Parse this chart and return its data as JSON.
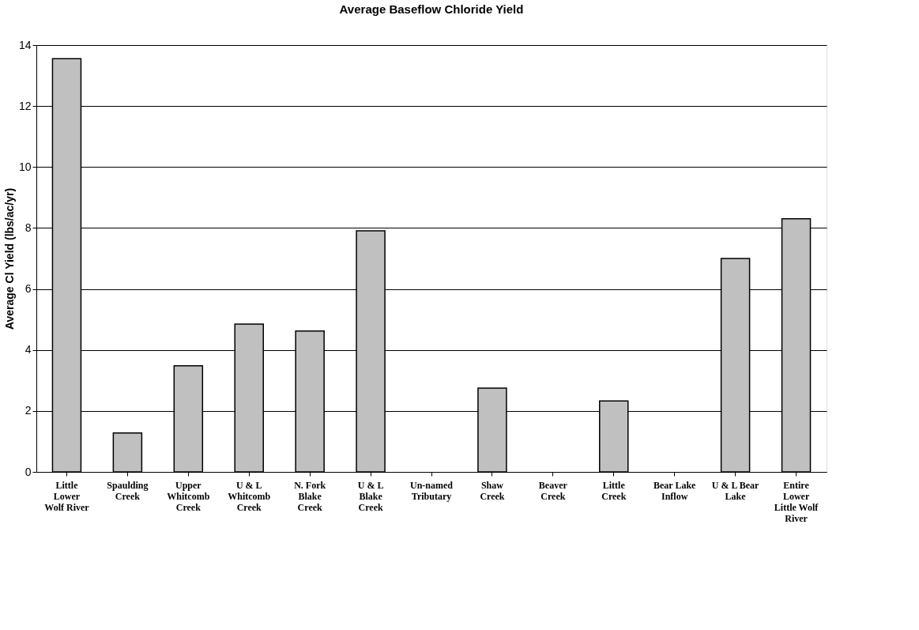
{
  "chart_data": {
    "type": "bar",
    "title": "Average Baseflow Chloride Yield",
    "ylabel": "Average Cl Yield (lbs/ac/yr)",
    "categories": [
      "Little\nLower\nWolf River",
      "Spaulding\nCreek",
      "Upper\nWhitcomb\nCreek",
      "U & L\nWhitcomb\nCreek",
      "N. Fork\nBlake\nCreek",
      "U & L\nBlake\nCreek",
      "Un-named\nTributary",
      "Shaw\nCreek",
      "Beaver\nCreek",
      "Little\nCreek",
      "Bear Lake\nInflow",
      "U & L Bear\nLake",
      "Entire\nLower\nLittle Wolf\nRiver"
    ],
    "values": [
      13.55,
      1.28,
      3.48,
      4.85,
      4.62,
      7.91,
      null,
      2.75,
      null,
      2.33,
      null,
      7.0,
      8.3
    ],
    "color": "#c0c0c0",
    "ylim": [
      0,
      14
    ],
    "yticks": [
      0,
      2,
      4,
      6,
      8,
      10,
      12,
      14
    ],
    "grid": "y"
  }
}
